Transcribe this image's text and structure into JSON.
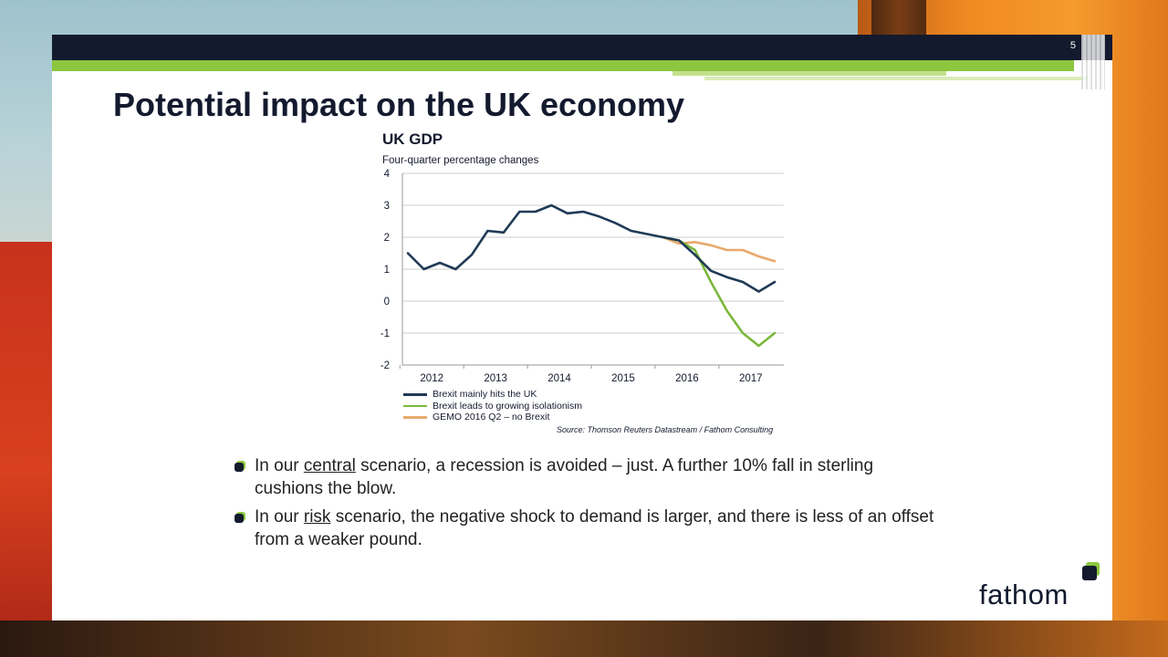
{
  "slide": {
    "number": "5",
    "title": "Potential impact on the UK economy",
    "logo": "fathom"
  },
  "chart_data": {
    "type": "line",
    "title": "UK GDP",
    "subtitle": "Four-quarter percentage changes",
    "xlabel": "",
    "ylabel": "",
    "ylim": [
      -2,
      4
    ],
    "yticks": [
      "4",
      "3",
      "2",
      "1",
      "0",
      "-1",
      "-2"
    ],
    "xtick_labels": [
      "2012",
      "2013",
      "2014",
      "2015",
      "2016",
      "2017"
    ],
    "grid": true,
    "legend_position": "bottom-left",
    "series": [
      {
        "name": "Brexit mainly hits the UK",
        "color": "#1f3a56",
        "points": [
          [
            2011.25,
            1.5
          ],
          [
            2011.5,
            1.0
          ],
          [
            2011.75,
            1.2
          ],
          [
            2012.0,
            1.0
          ],
          [
            2012.25,
            1.45
          ],
          [
            2012.5,
            2.2
          ],
          [
            2012.75,
            2.15
          ],
          [
            2013.0,
            2.8
          ],
          [
            2013.25,
            2.8
          ],
          [
            2013.5,
            3.0
          ],
          [
            2013.75,
            2.75
          ],
          [
            2014.0,
            2.8
          ],
          [
            2014.25,
            2.65
          ],
          [
            2014.5,
            2.45
          ],
          [
            2014.75,
            2.2
          ],
          [
            2015.0,
            2.1
          ],
          [
            2015.25,
            2.0
          ],
          [
            2015.5,
            1.9
          ],
          [
            2015.75,
            1.45
          ],
          [
            2016.0,
            0.95
          ],
          [
            2016.25,
            0.75
          ],
          [
            2016.5,
            0.6
          ],
          [
            2016.75,
            0.3
          ],
          [
            2017.0,
            0.6
          ]
        ]
      },
      {
        "name": "Brexit leads to growing isolationism",
        "color": "#7ab83b",
        "points": [
          [
            2015.25,
            2.0
          ],
          [
            2015.5,
            1.9
          ],
          [
            2015.75,
            1.6
          ],
          [
            2016.0,
            0.6
          ],
          [
            2016.25,
            -0.3
          ],
          [
            2016.5,
            -1.0
          ],
          [
            2016.75,
            -1.4
          ],
          [
            2017.0,
            -1.0
          ]
        ]
      },
      {
        "name": "GEMO 2016 Q2 – no Brexit",
        "color": "#e8a96c",
        "points": [
          [
            2015.25,
            2.0
          ],
          [
            2015.5,
            1.8
          ],
          [
            2015.75,
            1.85
          ],
          [
            2016.0,
            1.75
          ],
          [
            2016.25,
            1.6
          ],
          [
            2016.5,
            1.6
          ],
          [
            2016.75,
            1.4
          ],
          [
            2017.0,
            1.25
          ]
        ]
      }
    ],
    "source": "Source: Thomson Reuters Datastream / Fathom Consulting"
  },
  "bullets": [
    {
      "before": "In our ",
      "underlined": "central",
      "after": " scenario, a recession is avoided – just. A further 10% fall in sterling cushions the blow."
    },
    {
      "before": "In our ",
      "underlined": "risk",
      "after": " scenario, the negative shock to demand is larger, and there is less of an offset from a weaker pound."
    }
  ]
}
